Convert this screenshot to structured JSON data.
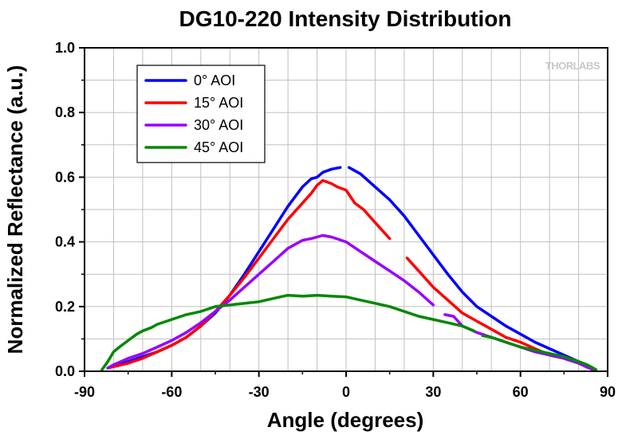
{
  "watermark": "THORLABS",
  "chart_data": {
    "type": "line",
    "title": "DG10-220 Intensity Distribution",
    "xlabel": "Angle (degrees)",
    "ylabel": "Normalized Reflectance (a.u.)",
    "xlim": [
      -90,
      90
    ],
    "ylim": [
      0,
      1.0
    ],
    "xticks": [
      -90,
      -60,
      -30,
      0,
      30,
      60,
      90
    ],
    "yticks": [
      0.0,
      0.2,
      0.4,
      0.6,
      0.8,
      1.0
    ],
    "xtick_labels": [
      "-90",
      "-60",
      "-30",
      "0",
      "30",
      "60",
      "90"
    ],
    "ytick_labels": [
      "0.0",
      "0.2",
      "0.4",
      "0.6",
      "0.8",
      "1.0"
    ],
    "grid": true,
    "legend_position": "top-left",
    "series": [
      {
        "name": "0° AOI",
        "color": "#0000ff",
        "segments": [
          [
            [
              -82,
              0.01
            ],
            [
              -75,
              0.03
            ],
            [
              -70,
              0.045
            ],
            [
              -65,
              0.06
            ],
            [
              -60,
              0.08
            ],
            [
              -55,
              0.105
            ],
            [
              -50,
              0.14
            ],
            [
              -45,
              0.18
            ],
            [
              -40,
              0.235
            ],
            [
              -35,
              0.3
            ],
            [
              -30,
              0.37
            ],
            [
              -25,
              0.44
            ],
            [
              -20,
              0.51
            ],
            [
              -15,
              0.57
            ],
            [
              -12,
              0.595
            ],
            [
              -10,
              0.6
            ],
            [
              -8,
              0.615
            ],
            [
              -5,
              0.625
            ],
            [
              -2,
              0.63
            ]
          ],
          [
            [
              1,
              0.63
            ],
            [
              5,
              0.61
            ],
            [
              10,
              0.57
            ],
            [
              15,
              0.53
            ],
            [
              20,
              0.48
            ],
            [
              25,
              0.42
            ],
            [
              30,
              0.36
            ],
            [
              35,
              0.3
            ],
            [
              40,
              0.245
            ],
            [
              45,
              0.2
            ],
            [
              50,
              0.17
            ],
            [
              55,
              0.14
            ],
            [
              60,
              0.115
            ],
            [
              65,
              0.09
            ],
            [
              70,
              0.07
            ],
            [
              75,
              0.05
            ],
            [
              80,
              0.03
            ],
            [
              84,
              0.01
            ]
          ]
        ]
      },
      {
        "name": "15° AOI",
        "color": "#ff0000",
        "segments": [
          [
            [
              -82,
              0.01
            ],
            [
              -75,
              0.025
            ],
            [
              -70,
              0.04
            ],
            [
              -65,
              0.06
            ],
            [
              -60,
              0.08
            ],
            [
              -55,
              0.105
            ],
            [
              -50,
              0.14
            ],
            [
              -45,
              0.185
            ],
            [
              -40,
              0.235
            ],
            [
              -35,
              0.29
            ],
            [
              -30,
              0.35
            ],
            [
              -25,
              0.41
            ],
            [
              -20,
              0.47
            ],
            [
              -15,
              0.52
            ],
            [
              -12,
              0.55
            ],
            [
              -10,
              0.575
            ],
            [
              -8,
              0.59
            ],
            [
              -5,
              0.58
            ],
            [
              -3,
              0.57
            ],
            [
              0,
              0.56
            ],
            [
              3,
              0.52
            ],
            [
              6,
              0.5
            ],
            [
              10,
              0.46
            ],
            [
              13,
              0.43
            ],
            [
              15,
              0.41
            ]
          ],
          [
            [
              21,
              0.35
            ],
            [
              25,
              0.31
            ],
            [
              30,
              0.26
            ],
            [
              35,
              0.22
            ],
            [
              40,
              0.18
            ],
            [
              45,
              0.155
            ],
            [
              50,
              0.13
            ],
            [
              55,
              0.105
            ],
            [
              60,
              0.09
            ],
            [
              65,
              0.07
            ],
            [
              70,
              0.05
            ],
            [
              75,
              0.04
            ],
            [
              80,
              0.025
            ],
            [
              84,
              0.015
            ],
            [
              86,
              0.005
            ]
          ]
        ]
      },
      {
        "name": "30° AOI",
        "color": "#9900ff",
        "segments": [
          [
            [
              -82,
              0.01
            ],
            [
              -80,
              0.02
            ],
            [
              -75,
              0.04
            ],
            [
              -70,
              0.055
            ],
            [
              -65,
              0.075
            ],
            [
              -60,
              0.095
            ],
            [
              -55,
              0.12
            ],
            [
              -50,
              0.15
            ],
            [
              -45,
              0.185
            ],
            [
              -40,
              0.22
            ],
            [
              -35,
              0.26
            ],
            [
              -30,
              0.3
            ],
            [
              -25,
              0.34
            ],
            [
              -20,
              0.38
            ],
            [
              -15,
              0.405
            ],
            [
              -12,
              0.41
            ],
            [
              -8,
              0.42
            ],
            [
              -5,
              0.415
            ],
            [
              0,
              0.4
            ],
            [
              5,
              0.37
            ],
            [
              10,
              0.34
            ],
            [
              15,
              0.31
            ],
            [
              20,
              0.28
            ],
            [
              25,
              0.245
            ],
            [
              30,
              0.205
            ]
          ],
          [
            [
              34,
              0.175
            ],
            [
              37,
              0.17
            ],
            [
              40,
              0.14
            ],
            [
              45,
              0.12
            ],
            [
              50,
              0.105
            ],
            [
              55,
              0.09
            ],
            [
              60,
              0.075
            ],
            [
              65,
              0.06
            ],
            [
              70,
              0.05
            ],
            [
              75,
              0.04
            ],
            [
              80,
              0.025
            ],
            [
              83,
              0.012
            ],
            [
              85,
              0.005
            ]
          ]
        ]
      },
      {
        "name": "45° AOI",
        "color": "#008800",
        "segments": [
          [
            [
              -84,
              0.005
            ],
            [
              -82,
              0.03
            ],
            [
              -80,
              0.06
            ],
            [
              -78,
              0.075
            ],
            [
              -75,
              0.095
            ],
            [
              -72,
              0.115
            ],
            [
              -70,
              0.125
            ],
            [
              -67,
              0.135
            ],
            [
              -65,
              0.145
            ],
            [
              -60,
              0.16
            ],
            [
              -55,
              0.175
            ],
            [
              -50,
              0.185
            ],
            [
              -45,
              0.2
            ],
            [
              -40,
              0.205
            ],
            [
              -35,
              0.21
            ],
            [
              -30,
              0.215
            ],
            [
              -25,
              0.225
            ],
            [
              -20,
              0.235
            ],
            [
              -15,
              0.232
            ],
            [
              -10,
              0.235
            ],
            [
              -5,
              0.232
            ],
            [
              0,
              0.23
            ],
            [
              5,
              0.22
            ],
            [
              10,
              0.21
            ],
            [
              15,
              0.2
            ],
            [
              20,
              0.185
            ],
            [
              25,
              0.17
            ],
            [
              30,
              0.16
            ],
            [
              35,
              0.15
            ],
            [
              40,
              0.14
            ],
            [
              44,
              0.125
            ]
          ],
          [
            [
              47,
              0.11
            ],
            [
              50,
              0.105
            ],
            [
              55,
              0.09
            ],
            [
              60,
              0.075
            ],
            [
              65,
              0.065
            ],
            [
              70,
              0.055
            ],
            [
              75,
              0.045
            ],
            [
              80,
              0.03
            ],
            [
              83,
              0.02
            ],
            [
              86,
              0.005
            ]
          ]
        ]
      }
    ]
  }
}
